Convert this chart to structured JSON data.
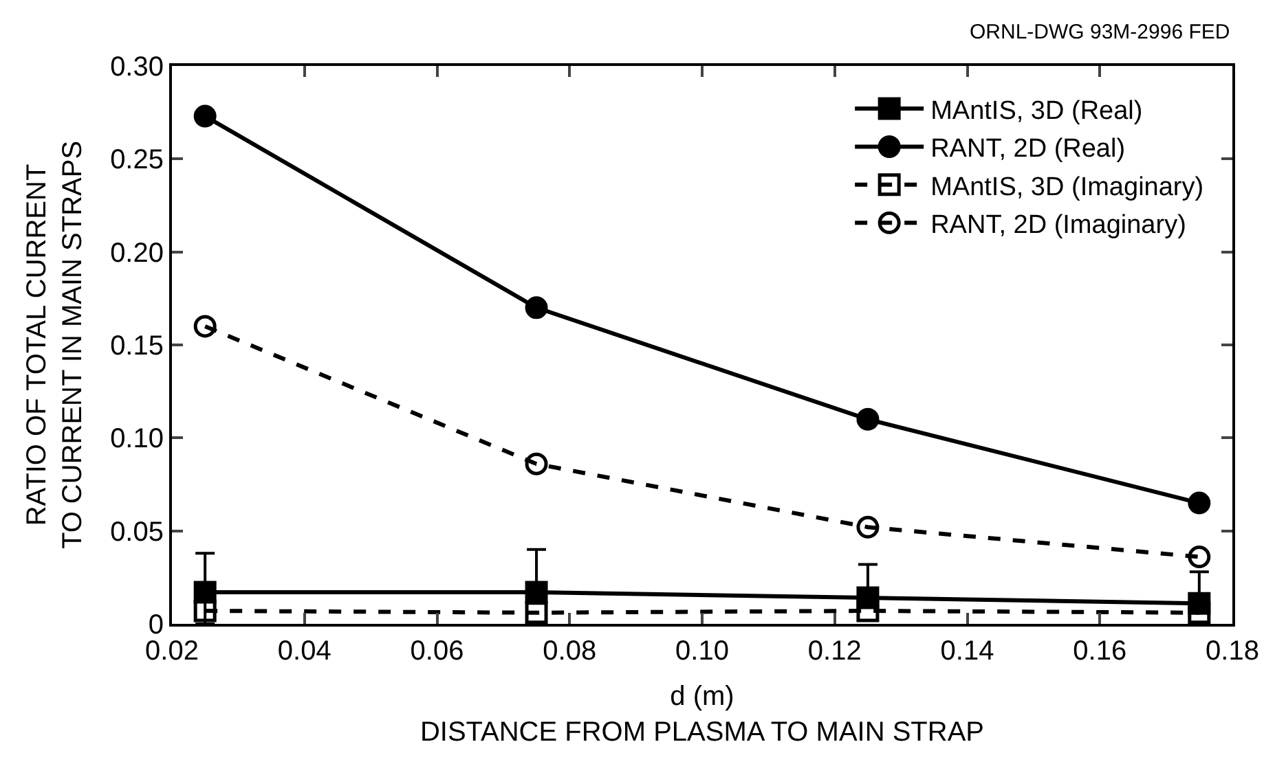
{
  "chart_data": {
    "type": "line",
    "xlabel": "d (m)\nDISTANCE FROM PLASMA TO MAIN STRAP",
    "ylabel": "RATIO OF TOTAL CURRENT\nTO CURRENT IN MAIN STRAPS",
    "annotations": [
      "ORNL-DWG 93M-2996 FED"
    ],
    "x": [
      0.025,
      0.075,
      0.125,
      0.175
    ],
    "series": [
      {
        "name": "MAntIS, 3D (Real)",
        "color": "#000000",
        "marker": "square",
        "line_style": "solid",
        "values": [
          0.017,
          0.017,
          0.014,
          0.011
        ],
        "errors": [
          [
            0,
            0.038
          ],
          [
            0.017,
            0.04
          ],
          [
            0.014,
            0.032
          ],
          [
            0.011,
            0.028
          ]
        ]
      },
      {
        "name": "RANT, 2D (Real)",
        "color": "#000000",
        "marker": "circle",
        "line_style": "solid",
        "values": [
          0.273,
          0.17,
          0.11,
          0.065
        ]
      },
      {
        "name": "MAntIS, 3D (Imaginary)",
        "color": "#000000",
        "marker": "square",
        "line_style": "dashed",
        "values": [
          0.007,
          0.006,
          0.007,
          0.006
        ]
      },
      {
        "name": "RANT, 2D (Imaginary)",
        "color": "#000000",
        "marker": "circle",
        "line_style": "dashed",
        "values": [
          0.16,
          0.086,
          0.052,
          0.036
        ]
      }
    ],
    "xlim": [
      0.02,
      0.18
    ],
    "xticks": [
      0.02,
      0.04,
      0.06,
      0.08,
      {
        "value": 0.1,
        "label": "0.10"
      },
      0.12,
      0.14,
      0.16,
      0.18
    ],
    "ylim": [
      0,
      0.3
    ],
    "yticks": [
      0,
      0.05,
      {
        "value": 0.1,
        "label": "0.10"
      },
      0.15,
      {
        "value": 0.2,
        "label": "0.20"
      },
      0.25,
      {
        "value": 0.3,
        "label": "0.30"
      }
    ],
    "legend": "top right"
  }
}
